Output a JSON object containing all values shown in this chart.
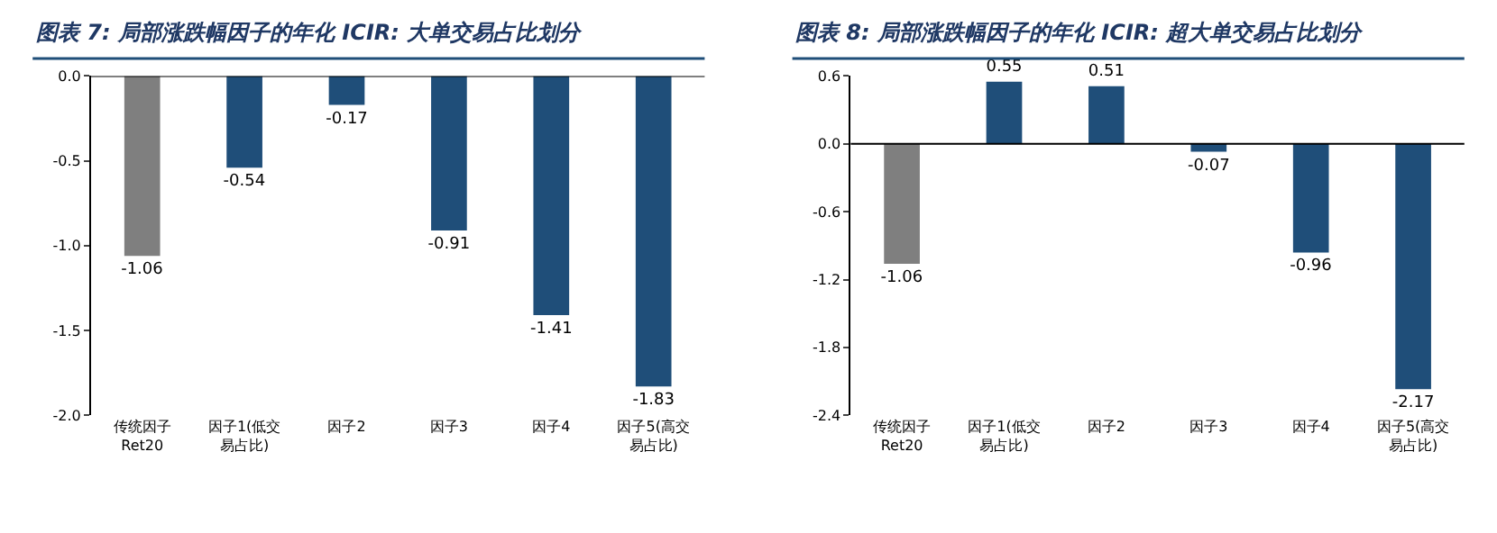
{
  "chart_data": [
    {
      "type": "bar",
      "title": "图表 7: 局部涨跌幅因子的年化 ICIR: 大单交易占比划分",
      "categories": [
        "传统因子Ret20",
        "因子1(低交易占比)",
        "因子2",
        "因子3",
        "因子4",
        "因子5(高交易占比)"
      ],
      "values": [
        -1.06,
        -0.54,
        -0.17,
        -0.91,
        -1.41,
        -1.83
      ],
      "colors": [
        "#7f7f7f",
        "#1f4e79",
        "#1f4e79",
        "#1f4e79",
        "#1f4e79",
        "#1f4e79"
      ],
      "ylim": [
        -2.0,
        0.0
      ],
      "yticks": [
        {
          "value": 0.0,
          "label": "0.0"
        },
        {
          "value": -0.5,
          "label": "-0.5"
        },
        {
          "value": -1.0,
          "label": "-1.0"
        },
        {
          "value": -1.5,
          "label": "-1.5"
        },
        {
          "value": -2.0,
          "label": "-2.0"
        }
      ],
      "data_labels": true,
      "legend": false
    },
    {
      "type": "bar",
      "title": "图表 8: 局部涨跌幅因子的年化 ICIR: 超大单交易占比划分",
      "categories": [
        "传统因子Ret20",
        "因子1(低交易占比)",
        "因子2",
        "因子3",
        "因子4",
        "因子5(高交易占比)"
      ],
      "values": [
        -1.06,
        0.55,
        0.51,
        -0.07,
        -0.96,
        -2.17
      ],
      "colors": [
        "#7f7f7f",
        "#1f4e79",
        "#1f4e79",
        "#1f4e79",
        "#1f4e79",
        "#1f4e79"
      ],
      "ylim": [
        -2.4,
        0.6
      ],
      "yticks": [
        {
          "value": 0.6,
          "label": "0.6"
        },
        {
          "value": 0.0,
          "label": "0.0"
        },
        {
          "value": -0.6,
          "label": "-0.6"
        },
        {
          "value": -1.2,
          "label": "-1.2"
        },
        {
          "value": -1.8,
          "label": "-1.8"
        },
        {
          "value": -2.4,
          "label": "-2.4"
        }
      ],
      "data_labels": true,
      "legend": false
    }
  ]
}
